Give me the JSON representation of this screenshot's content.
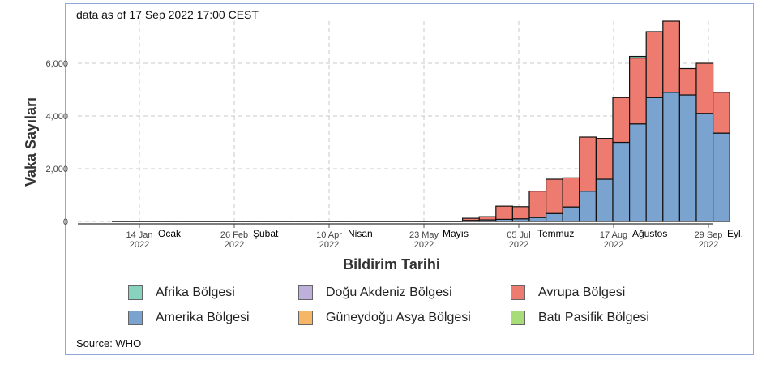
{
  "subtitle": "data as of 17 Sep 2022 17:00 CEST",
  "source": "Source: WHO",
  "chart_data": {
    "type": "bar",
    "stacked": true,
    "xlabel": "Bildirim Tarihi",
    "ylabel": "Vaka Sayıları",
    "ylim": [
      0,
      7600
    ],
    "y_ticks": [
      0,
      2000,
      4000,
      6000
    ],
    "y_tick_labels": [
      "0",
      "2,000",
      "4,000",
      "6,000"
    ],
    "x_ticks": [
      {
        "date": "14 Jan",
        "year": "2022",
        "month": "Ocak"
      },
      {
        "date": "26 Feb",
        "year": "2022",
        "month": "Şubat"
      },
      {
        "date": "10 Apr",
        "year": "2022",
        "month": "Nisan"
      },
      {
        "date": "23 May",
        "year": "2022",
        "month": "Mayıs"
      },
      {
        "date": "05 Jul",
        "year": "2022",
        "month": "Temmuz"
      },
      {
        "date": "17 Aug",
        "year": "2022",
        "month": "Ağustos"
      },
      {
        "date": "29 Sep",
        "year": "2022",
        "month": "Eyl."
      }
    ],
    "grid": true,
    "legend_position": "bottom",
    "categories": [
      "2022-01-03",
      "2022-01-10",
      "2022-01-17",
      "2022-01-24",
      "2022-01-31",
      "2022-02-07",
      "2022-02-14",
      "2022-02-21",
      "2022-02-28",
      "2022-03-07",
      "2022-03-14",
      "2022-03-21",
      "2022-03-28",
      "2022-04-04",
      "2022-04-11",
      "2022-04-18",
      "2022-04-25",
      "2022-05-02",
      "2022-05-09",
      "2022-05-16",
      "2022-05-23",
      "2022-05-30",
      "2022-06-06",
      "2022-06-13",
      "2022-06-20",
      "2022-06-27",
      "2022-07-04",
      "2022-07-11",
      "2022-07-18",
      "2022-07-25",
      "2022-08-01",
      "2022-08-08",
      "2022-08-15",
      "2022-08-22",
      "2022-08-29",
      "2022-09-05",
      "2022-09-12"
    ],
    "series": [
      {
        "name": "Amerika  Bölgesi",
        "color": "#7ba3cf",
        "values": [
          0,
          0,
          0,
          0,
          0,
          0,
          0,
          0,
          0,
          0,
          0,
          0,
          0,
          0,
          0,
          0,
          0,
          0,
          0,
          0,
          0,
          40,
          60,
          80,
          100,
          150,
          300,
          550,
          1150,
          1600,
          3000,
          3700,
          4700,
          4900,
          4800,
          4100,
          3350
        ]
      },
      {
        "name": "Avrupa Bölgesi",
        "color": "#ee7b70",
        "values": [
          0,
          0,
          0,
          0,
          0,
          0,
          0,
          0,
          0,
          0,
          0,
          0,
          0,
          0,
          0,
          0,
          0,
          0,
          0,
          0,
          0,
          80,
          120,
          500,
          460,
          1000,
          1300,
          1100,
          2050,
          1550,
          1700,
          2500,
          2500,
          2700,
          1000,
          1900,
          1550
        ]
      },
      {
        "name": "Afrika  Bölgesi",
        "color": "#88d3be",
        "values": [
          0,
          0,
          0,
          0,
          0,
          0,
          0,
          0,
          0,
          0,
          0,
          0,
          0,
          0,
          0,
          0,
          0,
          0,
          0,
          0,
          0,
          0,
          0,
          0,
          0,
          0,
          0,
          0,
          0,
          0,
          0,
          60,
          0,
          0,
          0,
          0,
          0
        ]
      },
      {
        "name": "Batı Pasifik Bölgesi",
        "color": "#a8dc78",
        "values": [
          0,
          0,
          0,
          0,
          0,
          0,
          0,
          0,
          0,
          0,
          0,
          0,
          0,
          0,
          0,
          0,
          0,
          0,
          0,
          0,
          0,
          0,
          0,
          0,
          0,
          0,
          0,
          0,
          0,
          0,
          0,
          0,
          0,
          0,
          0,
          0,
          0
        ]
      },
      {
        "name": "Doğu Akdeniz Bölgesi",
        "color": "#bdb0db",
        "values": [
          0,
          0,
          0,
          0,
          0,
          0,
          0,
          0,
          0,
          0,
          0,
          0,
          0,
          0,
          0,
          0,
          0,
          0,
          0,
          0,
          0,
          0,
          0,
          0,
          0,
          0,
          0,
          0,
          0,
          0,
          0,
          0,
          0,
          0,
          0,
          0,
          0
        ]
      },
      {
        "name": "Güneydoğu Asya Bölgesi",
        "color": "#f5b766",
        "values": [
          0,
          0,
          0,
          0,
          0,
          0,
          0,
          0,
          0,
          0,
          0,
          0,
          0,
          0,
          0,
          0,
          0,
          0,
          0,
          0,
          0,
          0,
          0,
          0,
          0,
          0,
          0,
          0,
          0,
          0,
          0,
          0,
          0,
          0,
          0,
          0,
          0
        ]
      }
    ],
    "legend": [
      {
        "label": "Afrika  Bölgesi",
        "color": "#88d3be"
      },
      {
        "label": "Doğu Akdeniz Bölgesi",
        "color": "#bdb0db"
      },
      {
        "label": "Avrupa Bölgesi",
        "color": "#ee7b70"
      },
      {
        "label": "Amerika  Bölgesi",
        "color": "#7ba3cf"
      },
      {
        "label": "Güneydoğu Asya Bölgesi",
        "color": "#f5b766"
      },
      {
        "label": "Batı Pasifik Bölgesi",
        "color": "#a8dc78"
      }
    ]
  }
}
